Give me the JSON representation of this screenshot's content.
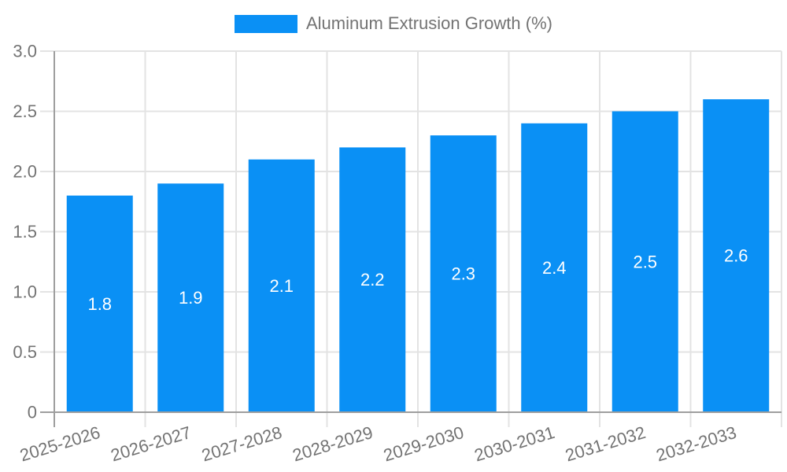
{
  "chart_data": {
    "type": "bar",
    "title": "",
    "legend": "Aluminum Extrusion Growth (%)",
    "legend_position": "top",
    "categories": [
      "2025-2026",
      "2026-2027",
      "2027-2028",
      "2028-2029",
      "2029-2030",
      "2030-2031",
      "2031-2032",
      "2032-2033"
    ],
    "values": [
      1.8,
      1.9,
      2.1,
      2.2,
      2.3,
      2.4,
      2.5,
      2.6
    ],
    "value_labels": [
      "1.8",
      "1.9",
      "2.1",
      "2.2",
      "2.3",
      "2.4",
      "2.5",
      "2.6"
    ],
    "xlabel": "",
    "ylabel": "",
    "ylim": [
      0,
      3.0
    ],
    "yticks": [
      0,
      0.5,
      1.0,
      1.5,
      2.0,
      2.5,
      3.0
    ],
    "ytick_labels": [
      "0",
      "0.5",
      "1.0",
      "1.5",
      "2.0",
      "2.5",
      "3.0"
    ],
    "grid": true,
    "bar_label_position": "inside-center",
    "colors": {
      "bar": "#0a90f5",
      "grid": "#e3e3e3",
      "axis": "#9e9e9e",
      "text": "#737373",
      "bar_label": "#ffffff",
      "background": "#ffffff"
    }
  }
}
